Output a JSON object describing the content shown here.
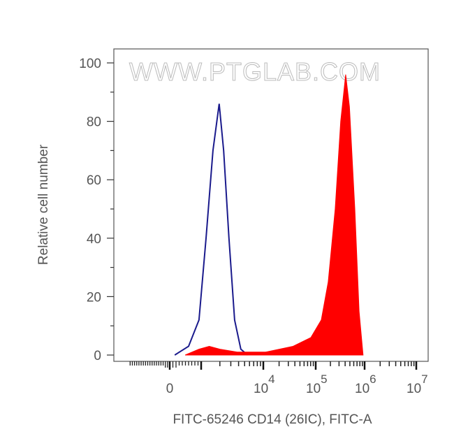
{
  "chart_data": {
    "type": "area",
    "title": "",
    "xlabel": "FITC-65246 CD14 (26IC), FITC-A",
    "ylabel": "Relative cell number",
    "x_scale": "biexponential",
    "xlim": [
      -2000,
      10000000
    ],
    "ylim": [
      0,
      105
    ],
    "yticks": [
      0,
      20,
      40,
      60,
      80,
      100
    ],
    "xticks": [
      {
        "value": 0,
        "label": "0",
        "exp": ""
      },
      {
        "value": 1000,
        "label": "",
        "exp": ""
      },
      {
        "value": 10000,
        "label": "10",
        "exp": "4"
      },
      {
        "value": 100000,
        "label": "10",
        "exp": "5"
      },
      {
        "value": 1000000,
        "label": "10",
        "exp": "6"
      },
      {
        "value": 10000000,
        "label": "10",
        "exp": "7"
      }
    ],
    "grid": false,
    "watermark": "WWW.PTGLAB.COM",
    "series": [
      {
        "style": "outline",
        "color": "#1a1a8c",
        "points": [
          [
            160,
            0
          ],
          [
            600,
            3
          ],
          [
            930,
            12
          ],
          [
            1200,
            40
          ],
          [
            1550,
            70
          ],
          [
            1950,
            86
          ],
          [
            2300,
            70
          ],
          [
            2800,
            40
          ],
          [
            3450,
            12
          ],
          [
            4350,
            2
          ],
          [
            5600,
            0
          ]
        ]
      },
      {
        "style": "filled",
        "color": "#ff0000",
        "points": [
          [
            490,
            0
          ],
          [
            930,
            2
          ],
          [
            1350,
            3
          ],
          [
            2000,
            2
          ],
          [
            3800,
            1
          ],
          [
            11000,
            1
          ],
          [
            37000,
            3
          ],
          [
            81000,
            6
          ],
          [
            130000,
            12
          ],
          [
            180000,
            25
          ],
          [
            250000,
            50
          ],
          [
            325000,
            80
          ],
          [
            410000,
            96
          ],
          [
            490000,
            85
          ],
          [
            630000,
            50
          ],
          [
            770000,
            15
          ],
          [
            930000,
            0
          ]
        ]
      }
    ]
  }
}
